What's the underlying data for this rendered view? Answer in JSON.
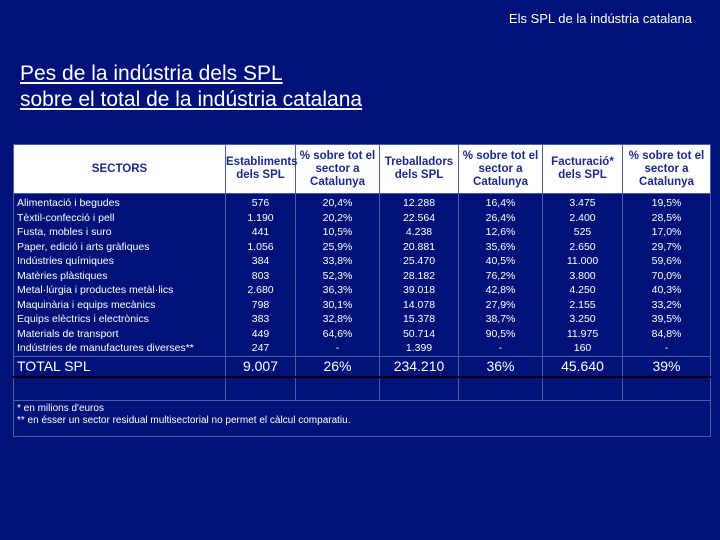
{
  "header": {
    "text": "Els SPL de la indústria catalana"
  },
  "title": {
    "line1": "Pes de la indústria dels SPL",
    "line2": "sobre el total de la indústria catalana"
  },
  "table": {
    "columns": [
      "SECTORS",
      "Establiments dels SPL",
      "% sobre tot el sector a Catalunya",
      "Treballadors dels SPL",
      "% sobre tot el sector a Catalunya",
      "Facturació* dels SPL",
      "% sobre tot el sector a Catalunya"
    ],
    "rows": [
      [
        "Alimentació i begudes",
        "576",
        "20,4%",
        "12.288",
        "16,4%",
        "3.475",
        "19,5%"
      ],
      [
        "Tèxtil-confecció i pell",
        "1.190",
        "20,2%",
        "22.564",
        "26,4%",
        "2.400",
        "28,5%"
      ],
      [
        "Fusta, mobles i suro",
        "441",
        "10,5%",
        "4.238",
        "12,6%",
        "525",
        "17,0%"
      ],
      [
        "Paper, edició i arts gràfiques",
        "1.056",
        "25,9%",
        "20.881",
        "35,6%",
        "2.650",
        "29,7%"
      ],
      [
        "Indústries químiques",
        "384",
        "33,8%",
        "25.470",
        "40,5%",
        "11.000",
        "59,6%"
      ],
      [
        "Matèries plàstiques",
        "803",
        "52,3%",
        "28.182",
        "76,2%",
        "3.800",
        "70,0%"
      ],
      [
        "Metal·lúrgia i productes metàl·lics",
        "2.680",
        "36,3%",
        "39.018",
        "42,8%",
        "4.250",
        "40,3%"
      ],
      [
        "Maquinària i equips mecànics",
        "798",
        "30,1%",
        "14.078",
        "27,9%",
        "2.155",
        "33,2%"
      ],
      [
        "Equips elèctrics i electrònics",
        "383",
        "32,8%",
        "15.378",
        "38,7%",
        "3.250",
        "39,5%"
      ],
      [
        "Materials de transport",
        "449",
        "64,6%",
        "50.714",
        "90,5%",
        "11.975",
        "84,8%"
      ],
      [
        "Indústries de manufactures diverses**",
        "247",
        "-",
        "1.399",
        "-",
        "160",
        "-"
      ]
    ],
    "total": [
      "TOTAL SPL",
      "9.007",
      "26%",
      "234.210",
      "36%",
      "45.640",
      "39%"
    ],
    "notes": [
      "* en milions d'euros",
      "** en ésser un sector residual multisectorial no permet el càlcul comparatiu."
    ]
  }
}
